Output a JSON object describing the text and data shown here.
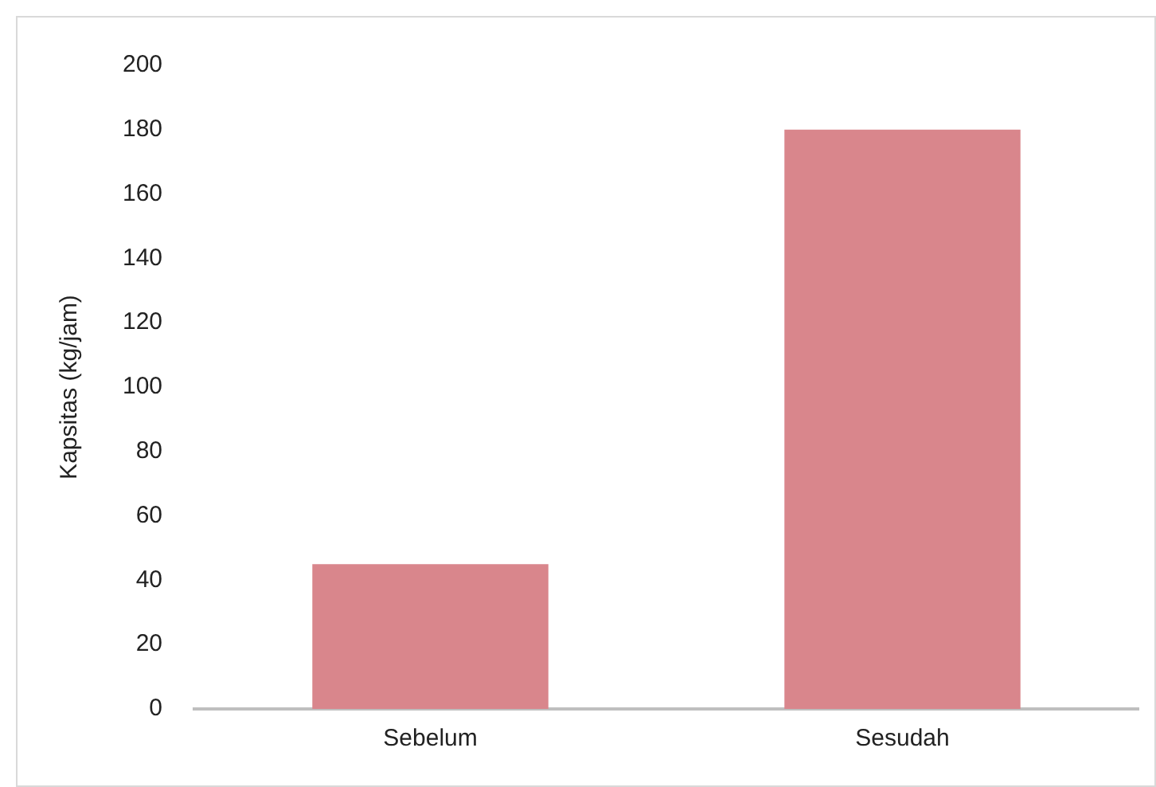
{
  "chart_data": {
    "type": "bar",
    "ylabel": "Kapsitas (kg/jam)",
    "categories": [
      "Sebelum",
      "Sesudah"
    ],
    "values": [
      45,
      180
    ],
    "color": "#d9868c",
    "ylim": [
      0,
      200
    ],
    "yticks": [
      0,
      20,
      40,
      60,
      80,
      100,
      120,
      140,
      160,
      180,
      200
    ],
    "grid": false,
    "legend": false
  }
}
